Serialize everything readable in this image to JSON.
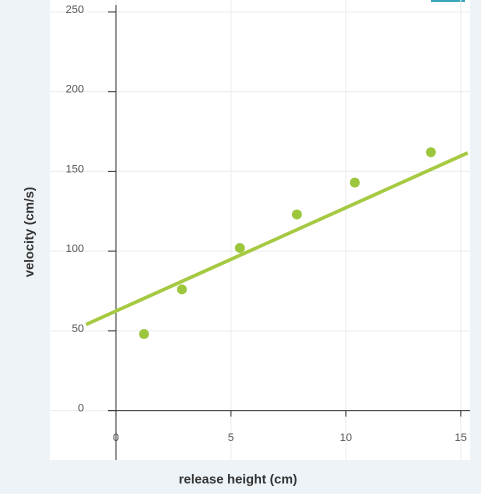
{
  "chart_data": {
    "type": "scatter",
    "x_label": "release height (cm)",
    "y_label": "velocity (cm/s)",
    "series": [
      {
        "x": [
          1.22,
          2.87,
          5.39,
          7.87,
          10.39,
          13.7
        ],
        "values": [
          48,
          76,
          102,
          123,
          143,
          162
        ],
        "color": "#9cc63b"
      }
    ],
    "fit_line": {
      "x": [
        -1.3,
        15.3
      ],
      "values": [
        54,
        161.6
      ],
      "color": "#a5c940"
    },
    "xlim": [
      -2.87,
      15.4
    ],
    "ylim": [
      -31,
      257.5
    ],
    "xticks": [
      0,
      5,
      10,
      15
    ],
    "yticks": [
      0,
      50,
      100,
      150,
      200,
      250
    ],
    "grid": true
  }
}
